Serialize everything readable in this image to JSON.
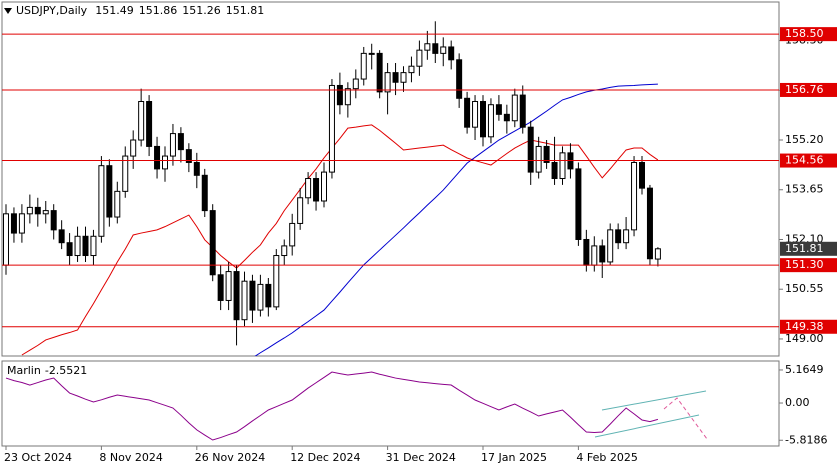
{
  "chart_data": [
    {
      "type": "candlestick",
      "title": "USDJPY,Daily",
      "categories": [
        "23 Oct 2024",
        null,
        null,
        null,
        null,
        null,
        null,
        null,
        null,
        null,
        null,
        null,
        "8 Nov 2024",
        null,
        null,
        null,
        null,
        null,
        null,
        null,
        null,
        null,
        null,
        null,
        "26 Nov 2024",
        null,
        null,
        null,
        null,
        null,
        null,
        null,
        null,
        null,
        null,
        null,
        "12 Dec 2024",
        null,
        null,
        null,
        null,
        null,
        null,
        null,
        null,
        null,
        null,
        null,
        "31 Dec 2024",
        null,
        null,
        null,
        null,
        null,
        null,
        null,
        null,
        null,
        null,
        null,
        "17 Jan 2025",
        null,
        null,
        null,
        null,
        null,
        null,
        null,
        null,
        null,
        null,
        null,
        "4 Feb 2025",
        null,
        null,
        null,
        null,
        null,
        null,
        null,
        null,
        null,
        null
      ],
      "open": [
        151.3,
        152.9,
        152.3,
        152.9,
        153.1,
        152.9,
        153.0,
        152.4,
        152.0,
        151.6,
        152.2,
        151.6,
        152.2,
        154.4,
        152.8,
        153.6,
        154.7,
        155.2,
        156.4,
        155.0,
        154.3,
        154.7,
        155.4,
        154.9,
        154.5,
        154.1,
        153.0,
        151.0,
        150.2,
        151.1,
        149.6,
        150.8,
        149.9,
        150.7,
        150.0,
        151.6,
        151.9,
        152.6,
        153.4,
        154.0,
        153.3,
        154.2,
        156.9,
        156.3,
        156.8,
        157.1,
        157.9,
        157.9,
        156.7,
        157.3,
        157.0,
        157.3,
        157.5,
        158.0,
        158.2,
        157.9,
        158.1,
        157.7,
        156.5,
        155.6,
        156.4,
        155.3,
        156.3,
        156.0,
        155.8,
        156.6,
        155.6,
        154.2,
        155.0,
        154.5,
        154.0,
        154.8,
        154.3,
        152.1,
        151.3,
        151.9,
        151.4,
        152.4,
        152.0,
        152.4,
        154.5,
        153.7,
        151.49
      ],
      "high": [
        153.2,
        153.1,
        153.2,
        153.5,
        153.4,
        153.3,
        153.2,
        152.7,
        152.3,
        152.5,
        152.5,
        152.4,
        154.7,
        154.6,
        153.9,
        155.0,
        155.5,
        156.8,
        156.6,
        155.3,
        155.0,
        155.7,
        155.6,
        155.1,
        154.8,
        154.3,
        153.2,
        151.3,
        151.4,
        151.3,
        151.1,
        151.0,
        151.0,
        150.9,
        151.8,
        152.1,
        152.9,
        153.7,
        154.2,
        154.2,
        154.5,
        157.1,
        157.3,
        157.0,
        157.4,
        158.1,
        158.2,
        158.0,
        157.6,
        157.6,
        157.5,
        157.8,
        158.3,
        158.6,
        158.9,
        158.4,
        158.3,
        157.9,
        156.7,
        156.6,
        156.6,
        156.5,
        156.6,
        156.3,
        156.8,
        156.9,
        155.8,
        155.3,
        155.2,
        155.3,
        155.0,
        155.1,
        154.5,
        152.4,
        152.2,
        152.1,
        152.6,
        152.6,
        152.8,
        154.7,
        154.7,
        153.8,
        151.86
      ],
      "low": [
        151.0,
        152.0,
        152.0,
        152.6,
        152.5,
        152.6,
        152.1,
        151.8,
        151.3,
        151.4,
        151.4,
        151.3,
        152.0,
        152.5,
        152.6,
        153.4,
        154.3,
        155.0,
        154.7,
        154.0,
        153.9,
        154.4,
        154.5,
        154.2,
        153.7,
        152.8,
        150.8,
        149.9,
        149.9,
        148.8,
        149.4,
        149.5,
        149.7,
        149.7,
        149.9,
        151.3,
        151.6,
        152.4,
        153.2,
        153.0,
        153.1,
        154.0,
        156.0,
        155.9,
        156.5,
        156.9,
        157.4,
        156.5,
        156.0,
        156.6,
        156.7,
        157.0,
        157.2,
        157.7,
        157.6,
        157.5,
        157.4,
        156.2,
        155.4,
        155.2,
        155.0,
        155.1,
        155.8,
        155.4,
        155.6,
        155.4,
        153.8,
        154.0,
        154.3,
        153.8,
        153.8,
        154.0,
        151.9,
        151.1,
        151.1,
        150.9,
        151.3,
        151.8,
        151.8,
        152.2,
        153.5,
        151.3,
        151.26
      ],
      "close": [
        152.9,
        152.3,
        152.9,
        153.1,
        152.9,
        153.0,
        152.4,
        152.0,
        151.6,
        152.2,
        151.6,
        152.2,
        154.4,
        152.8,
        153.6,
        154.7,
        155.2,
        156.4,
        155.0,
        154.3,
        154.7,
        155.4,
        154.9,
        154.5,
        154.1,
        153.0,
        151.0,
        150.2,
        151.1,
        149.6,
        150.8,
        149.9,
        150.7,
        150.0,
        151.6,
        151.9,
        152.6,
        153.4,
        154.0,
        153.3,
        154.2,
        156.9,
        156.3,
        156.8,
        157.1,
        157.9,
        157.9,
        156.7,
        157.3,
        157.0,
        157.3,
        157.5,
        158.0,
        158.2,
        157.9,
        158.1,
        157.7,
        156.5,
        155.6,
        156.4,
        155.3,
        156.3,
        156.0,
        155.8,
        156.6,
        155.6,
        154.2,
        155.0,
        154.5,
        154.0,
        154.8,
        154.3,
        152.1,
        151.3,
        151.9,
        151.4,
        152.4,
        152.0,
        152.4,
        154.5,
        153.7,
        151.5,
        151.81
      ],
      "overlays": [
        {
          "color": "#e00000",
          "values": [
            null,
            null,
            148.5,
            148.65,
            148.8,
            148.97,
            149.05,
            149.13,
            149.2,
            149.28,
            149.7,
            150.1,
            150.53,
            150.95,
            151.4,
            151.8,
            152.24,
            152.3,
            152.35,
            152.4,
            152.5,
            152.62,
            152.74,
            152.86,
            152.5,
            152.09,
            151.85,
            151.6,
            151.4,
            151.21,
            151.45,
            151.7,
            151.93,
            152.3,
            152.6,
            153.0,
            153.33,
            153.66,
            154.0,
            154.3,
            154.64,
            154.95,
            155.25,
            155.57,
            155.6,
            155.64,
            155.67,
            155.5,
            155.3,
            155.1,
            154.89,
            154.92,
            154.95,
            154.98,
            155.01,
            155.04,
            154.9,
            154.77,
            154.64,
            154.56,
            154.49,
            154.42,
            154.6,
            154.78,
            154.95,
            155.08,
            155.2,
            155.15,
            155.1,
            155.04,
            155.04,
            155.04,
            155.04,
            154.7,
            154.35,
            154.02,
            154.3,
            154.6,
            154.89,
            154.95,
            154.95,
            154.75,
            154.58
          ]
        },
        {
          "color": "#0000d0",
          "values": [
            null,
            null,
            null,
            null,
            null,
            null,
            null,
            null,
            null,
            null,
            null,
            null,
            null,
            null,
            null,
            null,
            null,
            null,
            null,
            null,
            null,
            null,
            null,
            null,
            null,
            null,
            null,
            null,
            null,
            null,
            null,
            148.41,
            148.57,
            148.72,
            148.88,
            149.03,
            149.19,
            149.37,
            149.54,
            149.72,
            149.9,
            150.18,
            150.46,
            150.75,
            151.03,
            151.31,
            151.54,
            151.77,
            152.0,
            152.23,
            152.46,
            152.7,
            152.93,
            153.17,
            153.4,
            153.64,
            153.92,
            154.2,
            154.48,
            154.66,
            154.84,
            155.02,
            155.2,
            155.34,
            155.48,
            155.62,
            155.76,
            155.93,
            156.1,
            156.28,
            156.45,
            156.53,
            156.62,
            156.7,
            156.75,
            156.79,
            156.84,
            156.88,
            156.89,
            156.9,
            156.92,
            156.93,
            156.94
          ]
        }
      ],
      "levels": [
        {
          "value": 158.5,
          "label": "158.50"
        },
        {
          "value": 156.76,
          "label": "156.76"
        },
        {
          "value": 154.56,
          "label": "154.56"
        },
        {
          "value": 151.3,
          "label": "151.30"
        },
        {
          "value": 149.38,
          "label": "149.38"
        }
      ],
      "level_color": "#e00000",
      "ylim": [
        148.5,
        159.47
      ],
      "yticks": [
        {
          "value": 149,
          "label": "149.00"
        },
        150.55,
        {
          "value": 152.1,
          "label": "152.10"
        },
        153.65,
        {
          "value": 155.2,
          "label": "155.20"
        },
        156.75,
        {
          "value": 158.3,
          "label": "158.30"
        }
      ]
    },
    {
      "type": "line",
      "title": "Marlin",
      "color": "#8b008b",
      "values": [
        3.9,
        3.5,
        3.2,
        2.8,
        3.2,
        3.6,
        3.9,
        2.7,
        1.56,
        1.1,
        0.6,
        0.16,
        0.5,
        0.9,
        1.25,
        1.05,
        0.86,
        0.66,
        0.47,
        0.05,
        -0.36,
        -0.78,
        -1.9,
        -3.1,
        -4.2,
        -5.0,
        -5.78,
        -5.4,
        -4.95,
        -4.53,
        -3.7,
        -2.8,
        -1.95,
        -1.09,
        -0.57,
        -0.05,
        0.47,
        1.4,
        2.34,
        3.17,
        4.0,
        4.84,
        4.6,
        4.38,
        4.53,
        4.68,
        4.84,
        4.5,
        4.2,
        3.9,
        3.7,
        3.5,
        3.28,
        3.16,
        3.04,
        2.92,
        2.81,
        2.0,
        1.25,
        0.47,
        -0.05,
        -0.57,
        -1.09,
        -0.6,
        -0.16,
        -0.8,
        -1.4,
        -2.03,
        -1.7,
        -1.4,
        -1.09,
        -2.2,
        -3.4,
        -4.53,
        -4.6,
        -4.53,
        -3.3,
        -2.0,
        -0.78,
        -1.7,
        -2.66,
        -2.9,
        -2.5521
      ],
      "ylim": [
        -6.56,
        6.41
      ],
      "yticks": [
        5.1649,
        {
          "value": 0,
          "label": "0.00"
        },
        -5.8186
      ]
    }
  ]
}
